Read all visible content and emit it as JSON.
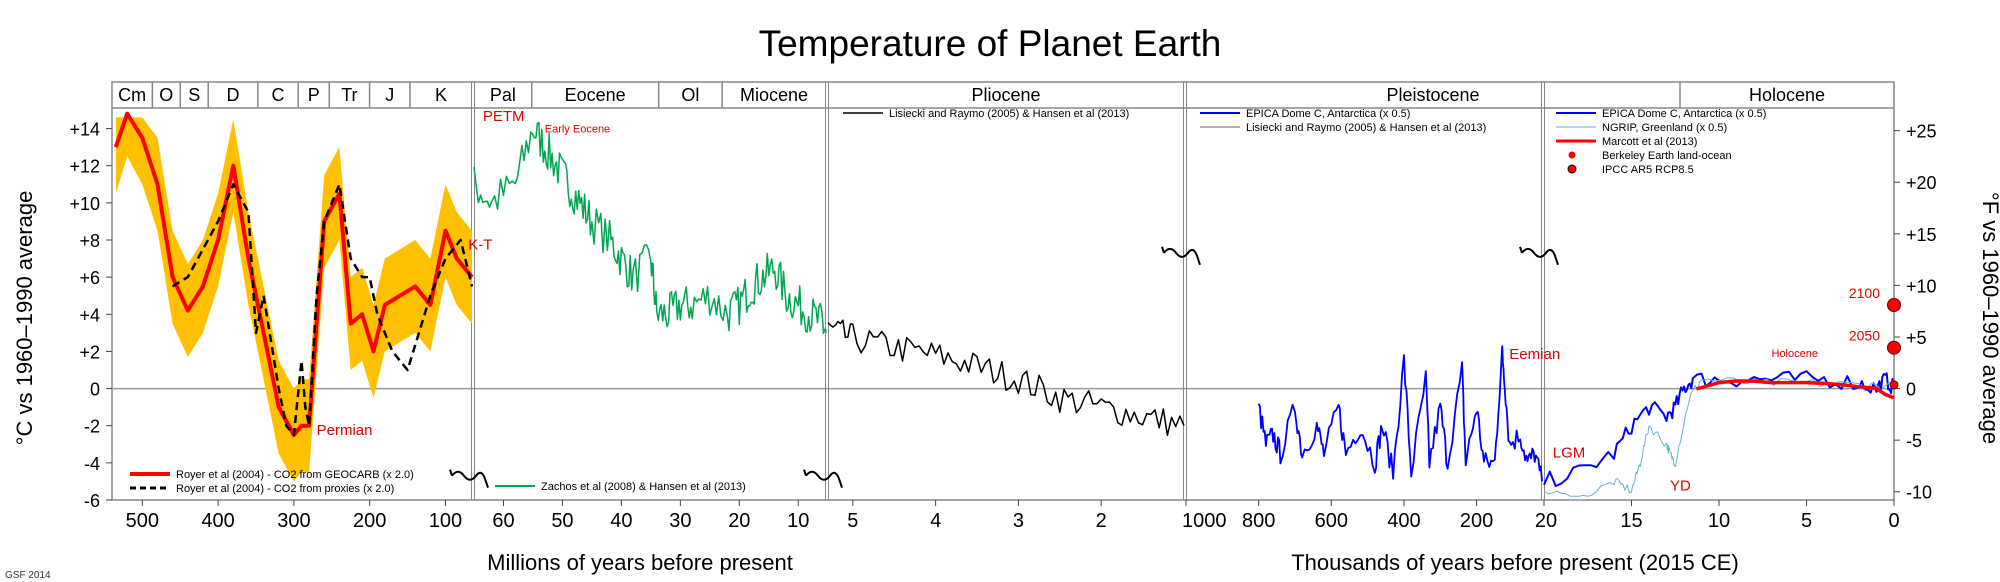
{
  "chart_data": {
    "type": "line",
    "title": "Temperature of Planet Earth",
    "ylabel_left": "°C vs 1960–1990 average",
    "ylabel_right": "°F vs 1960–1990 average",
    "xlabel_million": "Millions of years before present",
    "xlabel_thousand": "Thousands of years before present (2015 CE)",
    "credit": "GSF 2014",
    "ylim_c": [
      -6,
      15
    ],
    "y_ticks_c": [
      "-6",
      "-4",
      "-2",
      "0",
      "+2",
      "+4",
      "+6",
      "+8",
      "+10",
      "+12",
      "+14"
    ],
    "y_ticks_f": [
      "-10",
      "-5",
      "0",
      "+5",
      "+10",
      "+15",
      "+20",
      "+25"
    ],
    "grid": "horizontal zero line",
    "panels": [
      {
        "name": "paleozoic-mesozoic",
        "x_unit": "Ma",
        "x_range": [
          540,
          65
        ],
        "ticks": [
          "500",
          "400",
          "300",
          "200",
          "100"
        ],
        "periods": [
          "Cm",
          "O",
          "S",
          "D",
          "C",
          "P",
          "Tr",
          "J",
          "K"
        ]
      },
      {
        "name": "cenozoic",
        "x_unit": "Ma",
        "x_range": [
          65,
          5.3
        ],
        "ticks": [
          "60",
          "50",
          "40",
          "30",
          "20",
          "10"
        ],
        "periods": [
          "Pal",
          "Eocene",
          "Ol",
          "Miocene"
        ]
      },
      {
        "name": "pliocene",
        "x_unit": "Ma",
        "x_range": [
          5.3,
          1
        ],
        "ticks": [
          "5",
          "4",
          "3",
          "2"
        ],
        "periods": [
          "Pliocene"
        ]
      },
      {
        "name": "pleistocene",
        "x_unit": "ka",
        "x_range": [
          1000,
          20
        ],
        "ticks": [
          "1000",
          "800",
          "600",
          "400",
          "200"
        ],
        "periods": [
          "Pleistocene"
        ]
      },
      {
        "name": "holocene",
        "x_unit": "ka",
        "x_range": [
          20,
          0
        ],
        "ticks": [
          "20",
          "15",
          "10",
          "5",
          "0"
        ],
        "periods": [
          "Holocene"
        ]
      }
    ],
    "series": [
      {
        "name": "Royer et al (2004) - CO2 from GEOCARB (x 2.0)",
        "color": "#ff0000",
        "panel": 0,
        "x": [
          535,
          520,
          500,
          480,
          460,
          440,
          420,
          400,
          380,
          360,
          340,
          320,
          300,
          290,
          280,
          260,
          240,
          225,
          210,
          195,
          180,
          160,
          140,
          120,
          100,
          85,
          65
        ],
        "y": [
          13,
          15,
          13.5,
          11,
          6,
          4.2,
          5.5,
          8,
          12,
          7,
          3,
          -1,
          -2.5,
          -2,
          -2,
          9,
          10.5,
          3.5,
          4,
          2,
          4.5,
          5,
          5.5,
          4.5,
          8.5,
          7,
          6
        ]
      },
      {
        "name": "Royer et al (2004) - CO2 from proxies (x 2.0)",
        "color": "#000000",
        "panel": 0,
        "x": [
          460,
          440,
          420,
          400,
          380,
          360,
          350,
          340,
          320,
          310,
          300,
          290,
          285,
          280,
          270,
          260,
          250,
          240,
          225,
          210,
          200,
          190,
          170,
          150,
          120,
          100,
          80,
          65
        ],
        "y": [
          5.5,
          6,
          7.5,
          9,
          11,
          9.5,
          3,
          5,
          0,
          -2,
          -2.5,
          1.5,
          -1,
          -2,
          5,
          9,
          10,
          11,
          7,
          6,
          6,
          4,
          2,
          1,
          5,
          7,
          8,
          5.5
        ]
      },
      {
        "name": "Zachos et al (2008) & Hansen et al (2013)",
        "color": "#00a651",
        "panel": 1,
        "x": [
          65,
          62,
          58,
          55,
          53,
          51,
          49,
          47,
          45,
          42,
          40,
          38,
          35,
          34,
          32,
          30,
          28,
          25,
          22,
          20,
          18,
          16,
          14,
          12,
          10,
          8,
          6,
          5.3
        ],
        "y": [
          11,
          10,
          11,
          14,
          13,
          12,
          11,
          10,
          9,
          8,
          7,
          6,
          7,
          4,
          4,
          4.5,
          4.5,
          5,
          4,
          4.5,
          5.5,
          6,
          6.5,
          5,
          4.5,
          4,
          3.5,
          3
        ]
      },
      {
        "name": "Lisiecki and Raymo (2005) & Hansen et al (2013)",
        "color": "#000000",
        "panel": 2,
        "x": [
          5.3,
          5,
          4.5,
          4,
          3.5,
          3,
          2.5,
          2,
          1.5,
          1
        ],
        "y": [
          3.2,
          2.7,
          2.2,
          1.8,
          1.2,
          0.5,
          -0.5,
          -1,
          -1.5,
          -2
        ]
      },
      {
        "name": "EPICA Dome C, Antarctica (x 0.5)",
        "color": "#0000ff",
        "panel": 3,
        "x": [
          800,
          780,
          760,
          740,
          700,
          680,
          640,
          620,
          580,
          560,
          520,
          480,
          460,
          430,
          400,
          380,
          340,
          330,
          300,
          280,
          240,
          230,
          200,
          180,
          150,
          130,
          125,
          110,
          80,
          60,
          40,
          20
        ],
        "y": [
          -1,
          -3,
          -2.5,
          -3.5,
          -1,
          -3.5,
          -2,
          -3.5,
          -1,
          -3.5,
          -2,
          -4,
          -2,
          -4.5,
          1.5,
          -4.5,
          0.5,
          -4,
          -1,
          -4,
          1,
          -4,
          -1,
          -4,
          -4,
          2,
          1,
          -3,
          -2.5,
          -4,
          -3.5,
          -5
        ]
      },
      {
        "name": "EPICA Dome C, Antarctica (x 0.5)",
        "color": "#0000ff",
        "panel": 4,
        "x": [
          20,
          18,
          16,
          15,
          14,
          13,
          12.5,
          12,
          11.5,
          10,
          8,
          6,
          4,
          2,
          1,
          0.5,
          0
        ],
        "y": [
          -5,
          -4.5,
          -3.5,
          -2,
          -1,
          -1.5,
          -1,
          0,
          0.5,
          0.5,
          0.5,
          0.5,
          0.5,
          0.3,
          0,
          0.5,
          0
        ]
      },
      {
        "name": "NGRIP, Greenland (x 0.5)",
        "color": "#66b2cc",
        "panel": 4,
        "x": [
          20,
          18,
          16,
          15,
          14.5,
          14,
          13,
          12.8,
          12.5,
          11.7,
          11,
          8,
          5,
          2,
          0
        ],
        "y": [
          -5.5,
          -6,
          -5,
          -5.5,
          -4,
          -2,
          -3,
          -3.5,
          -4,
          -0.5,
          0.5,
          0.3,
          0.3,
          0.2,
          0.1
        ]
      },
      {
        "name": "Marcott et al (2013)",
        "color": "#ff0000",
        "panel": 4,
        "x": [
          11.3,
          10,
          9,
          8,
          7,
          6,
          5,
          4,
          3,
          2,
          1,
          0.5,
          0
        ],
        "y": [
          0,
          0.3,
          0.4,
          0.4,
          0.3,
          0.3,
          0.3,
          0.3,
          0.2,
          0.1,
          0,
          -0.3,
          -0.5
        ]
      }
    ],
    "points": [
      {
        "name": "Berkeley Earth land-ocean",
        "color": "#ff0000",
        "panel": 4,
        "x": 0,
        "y": 0.2
      },
      {
        "name": "IPCC AR5 RCP8.5",
        "color": "#ff0000",
        "panel": 4,
        "x": 0,
        "y": 2.2,
        "label": "2050"
      },
      {
        "name": "IPCC AR5 RCP8.5",
        "color": "#ff0000",
        "panel": 4,
        "x": 0,
        "y": 4.5,
        "label": "2100"
      }
    ],
    "annotations": [
      {
        "text": "Permian",
        "panel": 0,
        "x": 270,
        "y": -2.5
      },
      {
        "text": "K-T",
        "panel": 0,
        "x": 70,
        "y": 7.5
      },
      {
        "text": "PETM",
        "panel": 1,
        "x": 63.5,
        "y": 14.4
      },
      {
        "text": "Early Eocene",
        "panel": 1,
        "x": 53,
        "y": 13.8
      },
      {
        "text": "Eemian",
        "panel": 3,
        "x": 110,
        "y": 1.6
      },
      {
        "text": "LGM",
        "panel": 4,
        "x": 19.5,
        "y": -3.7
      },
      {
        "text": "YD",
        "panel": 4,
        "x": 12.8,
        "y": -5.5
      },
      {
        "text": "Holocene",
        "panel": 4,
        "x": 7,
        "y": 1.7
      }
    ],
    "legends": [
      {
        "panel": 0,
        "items": [
          "Royer et al (2004) - CO2 from GEOCARB (x 2.0)",
          "Royer et al (2004) - CO2 from proxies (x 2.0)"
        ]
      },
      {
        "panel": 1,
        "items": [
          "Zachos et al (2008) & Hansen et al (2013)"
        ]
      },
      {
        "panel": 2,
        "items": [
          "Lisiecki and Raymo (2005) & Hansen et al (2013)"
        ]
      },
      {
        "panel": 3,
        "items": [
          "EPICA Dome C, Antarctica (x 0.5)",
          "Lisiecki and Raymo (2005) & Hansen et al (2013)"
        ]
      },
      {
        "panel": 4,
        "items": [
          "EPICA Dome C, Antarctica (x 0.5)",
          "NGRIP, Greenland (x 0.5)",
          "Marcott et al (2013)",
          "Berkeley Earth land-ocean",
          "IPCC AR5 RCP8.5"
        ]
      }
    ]
  }
}
